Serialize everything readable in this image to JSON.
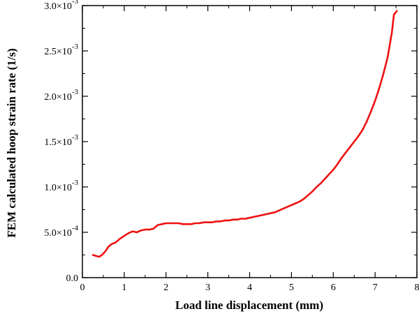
{
  "chart_data": {
    "type": "line",
    "xlabel": "Load line displacement (mm)",
    "ylabel": "FEM calculated hoop strain rate (1/s)",
    "xlim": [
      0,
      8
    ],
    "ylim": [
      0,
      0.003
    ],
    "x_ticks": [
      0,
      1,
      2,
      3,
      4,
      5,
      6,
      7,
      8
    ],
    "x_tick_labels": [
      "0",
      "1",
      "2",
      "3",
      "4",
      "5",
      "6",
      "7",
      "8"
    ],
    "y_ticks": [
      0,
      0.0005,
      0.001,
      0.0015,
      0.002,
      0.0025,
      0.003
    ],
    "y_tick_labels": [
      {
        "mantissa": "0.0",
        "exponent": ""
      },
      {
        "mantissa": "5.0×10",
        "exponent": "-4"
      },
      {
        "mantissa": "1.0×10",
        "exponent": "-3"
      },
      {
        "mantissa": "1.5×10",
        "exponent": "-3"
      },
      {
        "mantissa": "2.0×10",
        "exponent": "-3"
      },
      {
        "mantissa": "2.5×10",
        "exponent": "-3"
      },
      {
        "mantissa": "3.0×10",
        "exponent": "-3"
      }
    ],
    "grid": false,
    "series": [
      {
        "color": "#ee1111",
        "x": [
          0.25,
          0.32,
          0.4,
          0.47,
          0.55,
          0.62,
          0.7,
          0.8,
          0.9,
          1.0,
          1.1,
          1.2,
          1.3,
          1.4,
          1.5,
          1.6,
          1.7,
          1.8,
          1.9,
          2.0,
          2.1,
          2.2,
          2.3,
          2.4,
          2.5,
          2.6,
          2.7,
          2.8,
          2.9,
          3.0,
          3.1,
          3.2,
          3.3,
          3.4,
          3.5,
          3.6,
          3.7,
          3.8,
          3.9,
          4.0,
          4.1,
          4.2,
          4.3,
          4.4,
          4.5,
          4.6,
          4.7,
          4.8,
          4.9,
          5.0,
          5.1,
          5.2,
          5.3,
          5.4,
          5.5,
          5.6,
          5.7,
          5.8,
          5.9,
          6.0,
          6.1,
          6.2,
          6.3,
          6.4,
          6.5,
          6.6,
          6.7,
          6.8,
          6.9,
          7.0,
          7.1,
          7.2,
          7.3,
          7.4,
          7.45,
          7.52
        ],
        "y": [
          0.00025,
          0.00024,
          0.00023,
          0.00025,
          0.00029,
          0.00034,
          0.00037,
          0.00039,
          0.00043,
          0.00046,
          0.00049,
          0.00051,
          0.0005,
          0.00052,
          0.00053,
          0.00053,
          0.00054,
          0.00058,
          0.00059,
          0.0006,
          0.0006,
          0.0006,
          0.0006,
          0.00059,
          0.00059,
          0.00059,
          0.0006,
          0.0006,
          0.00061,
          0.00061,
          0.00061,
          0.00062,
          0.00062,
          0.00063,
          0.00063,
          0.00064,
          0.00064,
          0.00065,
          0.00065,
          0.00066,
          0.00067,
          0.00068,
          0.00069,
          0.0007,
          0.00071,
          0.00072,
          0.00074,
          0.00076,
          0.00078,
          0.0008,
          0.00082,
          0.00084,
          0.00087,
          0.00091,
          0.00095,
          0.001,
          0.00104,
          0.00109,
          0.00114,
          0.00119,
          0.00125,
          0.00132,
          0.00138,
          0.00144,
          0.0015,
          0.00156,
          0.00163,
          0.00172,
          0.00183,
          0.00195,
          0.00209,
          0.00225,
          0.00243,
          0.0027,
          0.0029,
          0.00294
        ]
      }
    ]
  }
}
